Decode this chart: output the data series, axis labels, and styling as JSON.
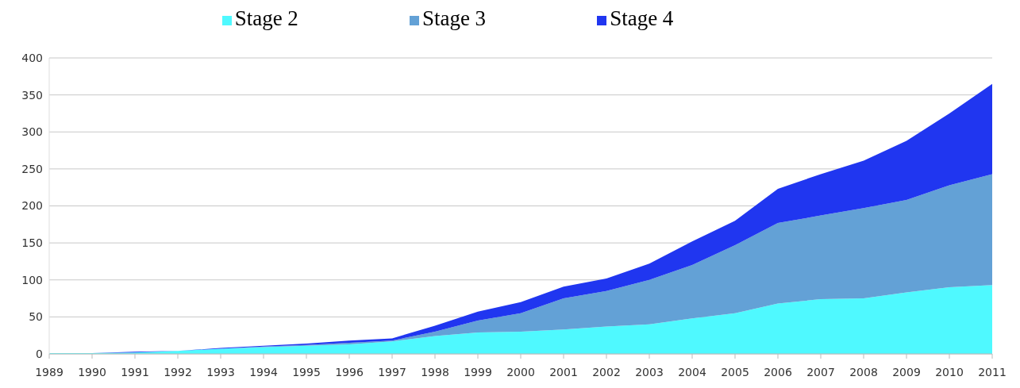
{
  "chart_data": {
    "type": "area",
    "stacked": true,
    "categories": [
      "1989",
      "1990",
      "1991",
      "1992",
      "1993",
      "1994",
      "1995",
      "1996",
      "1997",
      "1998",
      "1999",
      "2000",
      "2001",
      "2002",
      "2003",
      "2004",
      "2005",
      "2006",
      "2007",
      "2008",
      "2009",
      "2010",
      "2011"
    ],
    "series": [
      {
        "name": "Stage 2",
        "color": "#4ff9ff",
        "values": [
          1,
          1,
          2,
          4,
          7,
          9,
          11,
          13,
          17,
          24,
          29,
          30,
          33,
          37,
          40,
          48,
          55,
          68,
          74,
          75,
          83,
          90,
          93
        ]
      },
      {
        "name": "Stage 3",
        "color": "#63a1d6",
        "values": [
          0,
          0,
          0,
          0,
          0,
          1,
          1,
          2,
          1,
          6,
          16,
          25,
          42,
          48,
          60,
          72,
          92,
          109,
          113,
          122,
          125,
          138,
          150
        ]
      },
      {
        "name": "Stage 4",
        "color": "#2036f0",
        "values": [
          0,
          0,
          1,
          0,
          1,
          1,
          2,
          3,
          3,
          8,
          12,
          15,
          16,
          17,
          22,
          32,
          33,
          46,
          56,
          64,
          80,
          97,
          122
        ]
      }
    ],
    "ylim": [
      0,
      400
    ],
    "yticks": [
      0,
      50,
      100,
      150,
      200,
      250,
      300,
      350,
      400
    ],
    "grid": "y",
    "legend": "top"
  }
}
